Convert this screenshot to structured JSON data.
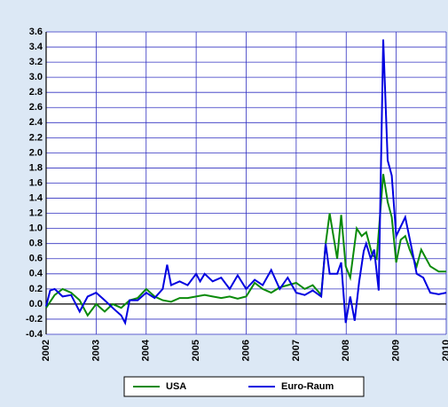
{
  "chart_data": {
    "type": "line",
    "xlim": [
      2002,
      2010
    ],
    "xticks": [
      2002,
      2003,
      2004,
      2005,
      2006,
      2007,
      2008,
      2009,
      2010
    ],
    "ylim": [
      -0.4,
      3.6
    ],
    "yticks": [
      -0.4,
      -0.2,
      {
        "value": 0,
        "label": "0.0"
      },
      0.2,
      0.4,
      0.6,
      0.8,
      {
        "value": 1,
        "label": "1.0"
      },
      1.2,
      1.4,
      1.6,
      1.8,
      {
        "value": 2,
        "label": "2.0"
      },
      2.2,
      2.4,
      2.6,
      2.8,
      {
        "value": 3,
        "label": "3.0"
      },
      3.2,
      3.4,
      3.6
    ],
    "grid": true,
    "legend": "bottom",
    "series": [
      {
        "name": "USA",
        "color": "#0a8a0a",
        "x": [
          2002.0,
          2002.17,
          2002.33,
          2002.5,
          2002.67,
          2002.83,
          2003.0,
          2003.17,
          2003.33,
          2003.5,
          2003.67,
          2003.83,
          2004.0,
          2004.17,
          2004.33,
          2004.5,
          2004.67,
          2004.83,
          2005.0,
          2005.17,
          2005.33,
          2005.5,
          2005.67,
          2005.83,
          2006.0,
          2006.17,
          2006.33,
          2006.5,
          2006.67,
          2006.83,
          2007.0,
          2007.17,
          2007.33,
          2007.5,
          2007.59,
          2007.67,
          2007.82,
          2007.9,
          2007.99,
          2008.08,
          2008.21,
          2008.31,
          2008.4,
          2008.52,
          2008.61,
          2008.74,
          2008.83,
          2008.91,
          2009.0,
          2009.09,
          2009.18,
          2009.27,
          2009.41,
          2009.5,
          2009.68,
          2009.85,
          2010.0
        ],
        "values": [
          -0.05,
          0.12,
          0.2,
          0.15,
          0.05,
          -0.15,
          0.0,
          -0.1,
          0.0,
          -0.05,
          0.05,
          0.08,
          0.2,
          0.1,
          0.05,
          0.03,
          0.08,
          0.08,
          0.1,
          0.12,
          0.1,
          0.08,
          0.1,
          0.07,
          0.1,
          0.28,
          0.2,
          0.15,
          0.22,
          0.25,
          0.28,
          0.2,
          0.25,
          0.12,
          0.8,
          1.2,
          0.6,
          1.18,
          0.5,
          0.35,
          1.0,
          0.9,
          0.95,
          0.65,
          0.6,
          1.72,
          1.35,
          1.15,
          0.55,
          0.85,
          0.9,
          0.72,
          0.5,
          0.72,
          0.5,
          0.43,
          0.43
        ]
      },
      {
        "name": "Euro-Raum",
        "color": "#0000e0",
        "x": [
          2002.0,
          2002.08,
          2002.17,
          2002.33,
          2002.5,
          2002.67,
          2002.83,
          2003.0,
          2003.17,
          2003.33,
          2003.5,
          2003.58,
          2003.67,
          2003.83,
          2004.0,
          2004.17,
          2004.33,
          2004.42,
          2004.5,
          2004.67,
          2004.83,
          2005.0,
          2005.08,
          2005.17,
          2005.33,
          2005.5,
          2005.67,
          2005.83,
          2006.0,
          2006.17,
          2006.33,
          2006.5,
          2006.67,
          2006.83,
          2007.0,
          2007.17,
          2007.33,
          2007.5,
          2007.59,
          2007.67,
          2007.82,
          2007.9,
          2007.99,
          2008.08,
          2008.17,
          2008.26,
          2008.35,
          2008.4,
          2008.49,
          2008.56,
          2008.65,
          2008.74,
          2008.83,
          2008.91,
          2009.0,
          2009.18,
          2009.32,
          2009.41,
          2009.54,
          2009.68,
          2009.85,
          2010.0
        ],
        "values": [
          -0.03,
          0.18,
          0.2,
          0.1,
          0.12,
          -0.1,
          0.1,
          0.15,
          0.05,
          -0.05,
          -0.15,
          -0.25,
          0.05,
          0.05,
          0.15,
          0.08,
          0.2,
          0.52,
          0.25,
          0.3,
          0.25,
          0.4,
          0.3,
          0.4,
          0.3,
          0.35,
          0.2,
          0.38,
          0.2,
          0.32,
          0.25,
          0.45,
          0.2,
          0.35,
          0.15,
          0.12,
          0.18,
          0.1,
          0.8,
          0.4,
          0.4,
          0.55,
          -0.25,
          0.1,
          -0.22,
          0.3,
          0.7,
          0.8,
          0.6,
          0.72,
          0.18,
          3.5,
          1.9,
          1.7,
          0.9,
          1.15,
          0.7,
          0.4,
          0.35,
          0.15,
          0.13,
          0.15
        ]
      }
    ]
  }
}
